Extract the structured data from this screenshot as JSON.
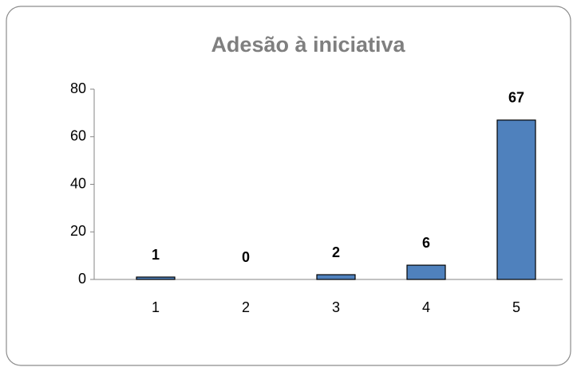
{
  "chart_data": {
    "type": "bar",
    "title": "Adesão à iniciativa",
    "categories": [
      "1",
      "2",
      "3",
      "4",
      "5"
    ],
    "values": [
      1,
      0,
      2,
      6,
      67
    ],
    "color": "#4f81bd",
    "ylim": [
      0,
      80
    ],
    "yticks": [
      0,
      20,
      40,
      60,
      80
    ],
    "grid": false
  }
}
